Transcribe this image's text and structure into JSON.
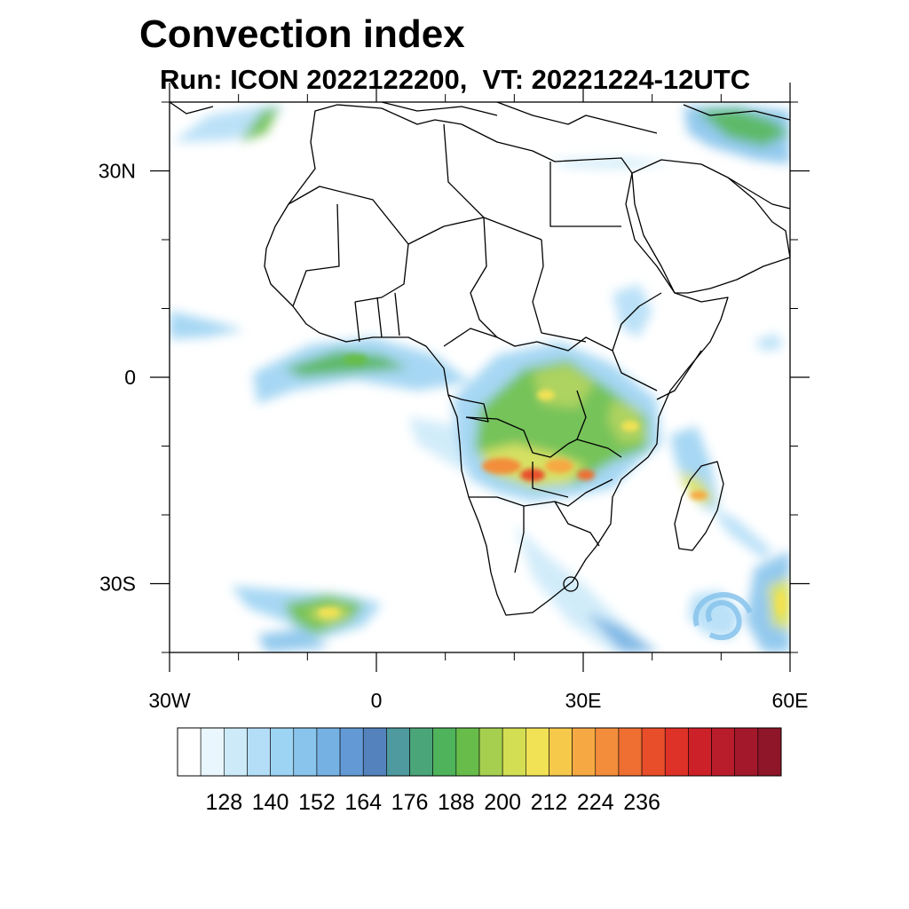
{
  "header": {
    "title": "Convection index",
    "subtitle": "Run: ICON 2022122200,  VT: 20221224-12UTC"
  },
  "map": {
    "extent": {
      "lon": [
        -30,
        60
      ],
      "lat": [
        -40,
        40
      ]
    },
    "lon_ticks": [
      {
        "value": -30,
        "label": "30W"
      },
      {
        "value": 0,
        "label": "0"
      },
      {
        "value": 30,
        "label": "30E"
      },
      {
        "value": 60,
        "label": "60E"
      }
    ],
    "lat_ticks": [
      {
        "value": 30,
        "label": "30N"
      },
      {
        "value": 0,
        "label": "0"
      },
      {
        "value": -30,
        "label": "30S"
      }
    ],
    "minor_lon_step": 10,
    "minor_lat_step": 10
  },
  "colorbar": {
    "colors": [
      "#ffffff",
      "#e9f6fd",
      "#cdeaf9",
      "#b4def7",
      "#9dd3f3",
      "#88c4ec",
      "#75b2e3",
      "#6399d4",
      "#5482bd",
      "#4e9a9e",
      "#4aa578",
      "#4eb35a",
      "#68bd4a",
      "#a6cf4f",
      "#d3de52",
      "#f1e255",
      "#f7c94b",
      "#f6a843",
      "#f38d3b",
      "#ef6e32",
      "#e84e2a",
      "#de3127",
      "#cd2129",
      "#b91c2a",
      "#a3182a",
      "#8e1628"
    ],
    "labels": [
      "128",
      "140",
      "152",
      "164",
      "176",
      "188",
      "200",
      "212",
      "224",
      "236"
    ]
  }
}
